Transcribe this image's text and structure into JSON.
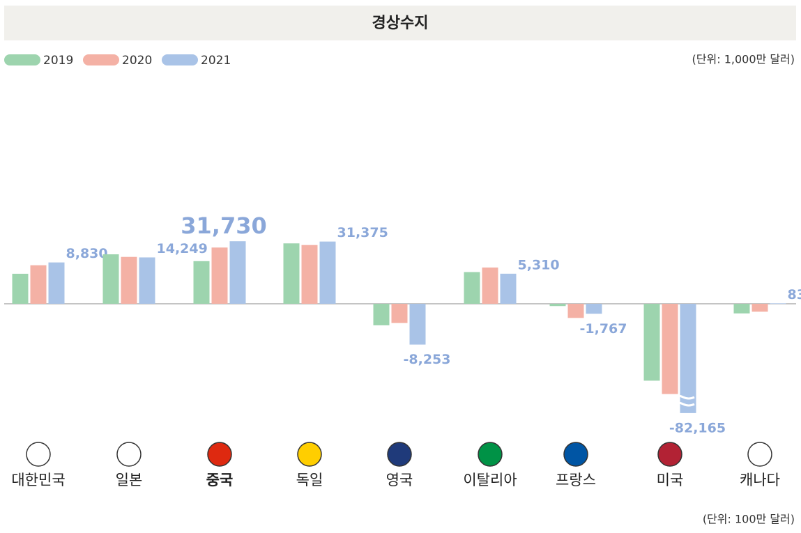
{
  "chart_data": {
    "type": "bar",
    "title": "경상수지",
    "unit_top": "(단위: 1,000만 달러)",
    "unit_bottom": "(단위: 100만 달러)",
    "categories": [
      "대한민국",
      "일본",
      "중국",
      "독일",
      "영국",
      "이탈리아",
      "프랑스",
      "미국",
      "캐나다"
    ],
    "series": [
      {
        "name": "2019",
        "color": "#9dd4ae",
        "values": [
          5300,
          17600,
          10200,
          29400,
          -3800,
          5600,
          -400,
          -47200,
          -1700
        ]
      },
      {
        "name": "2020",
        "color": "#f4b1a5",
        "values": [
          6800,
          14800,
          24900,
          27600,
          -3400,
          6400,
          -2500,
          -61600,
          -1400
        ]
      },
      {
        "name": "2021",
        "color": "#a9c3e7",
        "values": [
          8830,
          14249,
          31730,
          31375,
          -8253,
          5310,
          -1767,
          -82165,
          83
        ],
        "value_labels": [
          "8,830",
          "14,249",
          "31,730",
          "31,375",
          "-8,253",
          "5,310",
          "-1,767",
          "-82,165",
          "83"
        ]
      }
    ]
  }
}
